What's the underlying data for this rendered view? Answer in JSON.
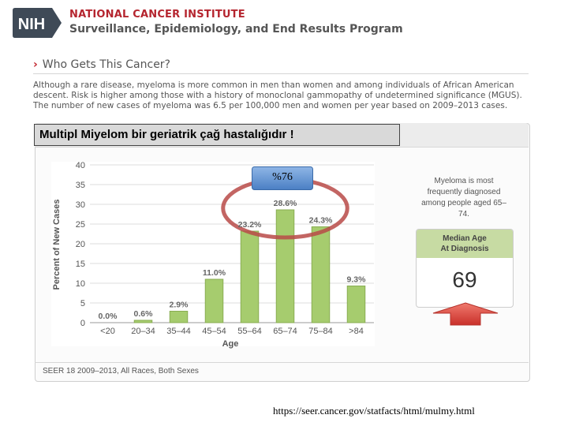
{
  "header": {
    "logo_text": "NIH",
    "institute": "NATIONAL CANCER INSTITUTE",
    "program": "Surveillance, Epidemiology, and End Results Program"
  },
  "section": {
    "title": "Who Gets This Cancer?",
    "description": "Although a rare disease, myeloma is more common in men than women and among individuals of African American descent. Risk is higher among those with a history of monoclonal gammopathy of undetermined significance (MGUS). The number of new cases of myeloma was 6.5 per 100,000 men and women per year based on 2009–2013 cases."
  },
  "overlay_title": "Multipl Miyelom bir geriatrik çağ hastalığıdır !",
  "annotation": {
    "label": "%76"
  },
  "side_note": "Myeloma is most frequently diagnosed among people aged 65–74.",
  "median_card": {
    "title_line1": "Median Age",
    "title_line2": "At Diagnosis",
    "value": "69"
  },
  "footer": "SEER 18 2009–2013, All Races, Both Sexes",
  "source_url": "https://seer.cancer.gov/statfacts/html/mulmy.html",
  "colors": {
    "bar": "#a6cc6e",
    "bar_stroke": "#88ad52",
    "ellipse": "#b94a48",
    "arrow": "#d9403a",
    "annotation_box": "#5d8fd0"
  },
  "chart_data": {
    "type": "bar",
    "categories": [
      "<20",
      "20–34",
      "35–44",
      "45–54",
      "55–64",
      "65–74",
      "75–84",
      ">84"
    ],
    "values": [
      0.0,
      0.6,
      2.9,
      11.0,
      23.2,
      28.6,
      24.3,
      9.3
    ],
    "labels": [
      "0.0%",
      "0.6%",
      "2.9%",
      "11.0%",
      "23.2%",
      "28.6%",
      "24.3%",
      "9.3%"
    ],
    "xlabel": "Age",
    "ylabel": "Percent of New Cases",
    "ylim": [
      0,
      40
    ],
    "yticks": [
      0,
      5,
      10,
      15,
      20,
      25,
      30,
      35,
      40
    ],
    "grid": true
  }
}
